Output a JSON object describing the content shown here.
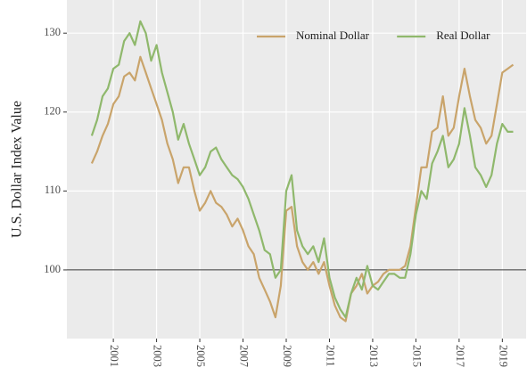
{
  "chart_data": {
    "type": "line",
    "ylabel": "U.S. Dollar Index Value",
    "x": [
      2000.0,
      2000.25,
      2000.5,
      2000.75,
      2001.0,
      2001.25,
      2001.5,
      2001.75,
      2002.0,
      2002.25,
      2002.5,
      2002.75,
      2003.0,
      2003.25,
      2003.5,
      2003.75,
      2004.0,
      2004.25,
      2004.5,
      2004.75,
      2005.0,
      2005.25,
      2005.5,
      2005.75,
      2006.0,
      2006.25,
      2006.5,
      2006.75,
      2007.0,
      2007.25,
      2007.5,
      2007.75,
      2008.0,
      2008.25,
      2008.5,
      2008.75,
      2009.0,
      2009.25,
      2009.5,
      2009.75,
      2010.0,
      2010.25,
      2010.5,
      2010.75,
      2011.0,
      2011.25,
      2011.5,
      2011.75,
      2012.0,
      2012.25,
      2012.5,
      2012.75,
      2013.0,
      2013.25,
      2013.5,
      2013.75,
      2014.0,
      2014.25,
      2014.5,
      2014.75,
      2015.0,
      2015.25,
      2015.5,
      2015.75,
      2016.0,
      2016.25,
      2016.5,
      2016.75,
      2017.0,
      2017.25,
      2017.5,
      2017.75,
      2018.0,
      2018.25,
      2018.5,
      2018.75,
      2019.0,
      2019.25,
      2019.5
    ],
    "series": [
      {
        "name": "Nominal Dollar",
        "color": "#c9a46b",
        "values": [
          113.5,
          115,
          117,
          118.5,
          121,
          122,
          124.5,
          125,
          124,
          127,
          125,
          123,
          121,
          119,
          116,
          114,
          111,
          113,
          113,
          110,
          107.5,
          108.5,
          110,
          108.5,
          108,
          107,
          105.5,
          106.5,
          105,
          103,
          102,
          99,
          97.5,
          96,
          94,
          98,
          107.5,
          108,
          103,
          101,
          100,
          101,
          99.5,
          101,
          98,
          95.5,
          94,
          93.5,
          97,
          98,
          99.5,
          97,
          98,
          98.5,
          99.5,
          100,
          100,
          100,
          100.5,
          103,
          108,
          113,
          113,
          117.5,
          118,
          122,
          117,
          118,
          122,
          125.5,
          122,
          119,
          118,
          116,
          117,
          121,
          125,
          125.5,
          126
        ]
      },
      {
        "name": "Real Dollar",
        "color": "#8fb86c",
        "values": [
          117,
          119,
          122,
          123,
          125.5,
          126,
          129,
          130,
          128.5,
          131.5,
          130,
          126.5,
          128.5,
          125,
          122.5,
          120,
          116.5,
          118.5,
          116,
          114,
          112,
          113,
          115,
          115.5,
          114,
          113,
          112,
          111.5,
          110.5,
          109,
          107,
          105,
          102.5,
          102,
          99,
          100,
          110,
          112,
          105,
          103,
          102,
          103,
          101,
          104,
          99,
          96.5,
          95,
          94,
          97,
          99,
          97.5,
          100.5,
          98,
          97.5,
          98.5,
          99.5,
          99.5,
          99,
          99,
          102,
          107,
          110,
          109,
          113.5,
          115,
          117,
          113,
          114,
          116,
          120.5,
          117,
          113,
          112,
          110.5,
          112,
          116,
          118.5,
          117.5,
          117.5
        ]
      }
    ],
    "xlim": [
      1998.85,
      2020.1
    ],
    "xticks": [
      2001,
      2003,
      2005,
      2007,
      2009,
      2011,
      2013,
      2015,
      2017,
      2019
    ],
    "ylim": [
      91.3,
      134.2
    ],
    "yticks": [
      100,
      110,
      120,
      130
    ],
    "hline": 100,
    "grid": true,
    "legend": "top-right"
  }
}
